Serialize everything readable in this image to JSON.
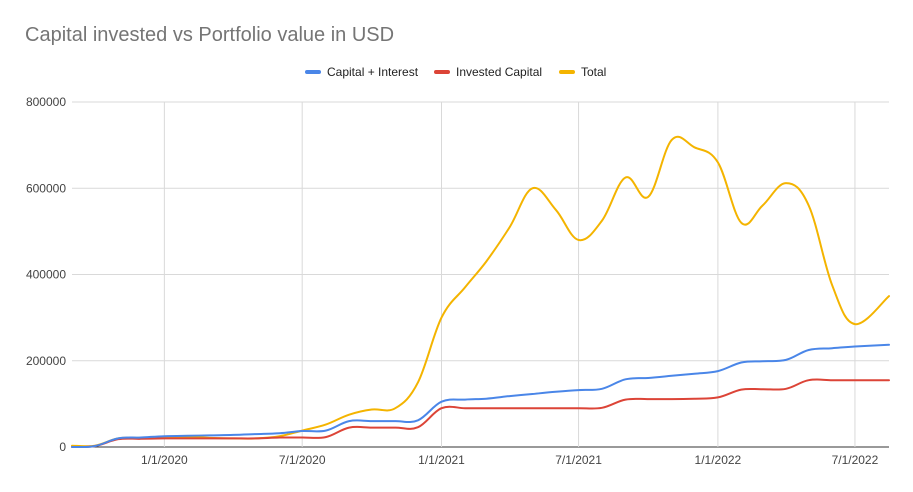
{
  "chart_data": {
    "type": "line",
    "title": "Capital invested vs Portfolio value in USD",
    "xlabel": "",
    "ylabel": "",
    "ylim": [
      0,
      800000
    ],
    "yticks": [
      "0",
      "200000",
      "400000",
      "600000",
      "800000"
    ],
    "xtick_labels": [
      "1/1/2020",
      "7/1/2020",
      "1/1/2021",
      "7/1/2021",
      "1/1/2022",
      "7/1/2022"
    ],
    "xtick_dates": [
      "2020-01-01",
      "2020-07-01",
      "2021-01-01",
      "2021-07-01",
      "2022-01-01",
      "2022-07-01"
    ],
    "xlim": [
      "2019-09-01",
      "2022-08-15"
    ],
    "grid": true,
    "legend_position": "top",
    "series": [
      {
        "name": "Capital + Interest",
        "color": "#4a86e8",
        "points": [
          [
            "2019-09-01",
            0
          ],
          [
            "2019-10-01",
            2000
          ],
          [
            "2019-11-01",
            20000
          ],
          [
            "2019-12-01",
            22000
          ],
          [
            "2020-01-01",
            25000
          ],
          [
            "2020-02-01",
            26000
          ],
          [
            "2020-03-01",
            27000
          ],
          [
            "2020-04-01",
            28000
          ],
          [
            "2020-05-01",
            30000
          ],
          [
            "2020-06-01",
            32000
          ],
          [
            "2020-07-01",
            37000
          ],
          [
            "2020-08-01",
            38000
          ],
          [
            "2020-09-01",
            60000
          ],
          [
            "2020-10-01",
            60000
          ],
          [
            "2020-11-01",
            60000
          ],
          [
            "2020-12-01",
            62000
          ],
          [
            "2021-01-01",
            105000
          ],
          [
            "2021-02-01",
            110000
          ],
          [
            "2021-03-01",
            112000
          ],
          [
            "2021-04-01",
            118000
          ],
          [
            "2021-05-01",
            123000
          ],
          [
            "2021-06-01",
            128000
          ],
          [
            "2021-07-01",
            132000
          ],
          [
            "2021-08-01",
            135000
          ],
          [
            "2021-09-01",
            157000
          ],
          [
            "2021-10-01",
            160000
          ],
          [
            "2021-11-01",
            165000
          ],
          [
            "2021-12-01",
            170000
          ],
          [
            "2022-01-01",
            176000
          ],
          [
            "2022-02-01",
            196000
          ],
          [
            "2022-03-01",
            199000
          ],
          [
            "2022-04-01",
            202000
          ],
          [
            "2022-05-01",
            225000
          ],
          [
            "2022-06-01",
            229000
          ],
          [
            "2022-07-01",
            233000
          ],
          [
            "2022-08-15",
            237000
          ]
        ]
      },
      {
        "name": "Invested Capital",
        "color": "#dc4437",
        "points": [
          [
            "2019-09-01",
            0
          ],
          [
            "2019-10-01",
            2000
          ],
          [
            "2019-11-01",
            18000
          ],
          [
            "2019-12-01",
            19000
          ],
          [
            "2020-01-01",
            20000
          ],
          [
            "2020-02-01",
            20000
          ],
          [
            "2020-03-01",
            20000
          ],
          [
            "2020-04-01",
            20000
          ],
          [
            "2020-05-01",
            20000
          ],
          [
            "2020-06-01",
            22000
          ],
          [
            "2020-07-01",
            22000
          ],
          [
            "2020-08-01",
            23000
          ],
          [
            "2020-09-01",
            45000
          ],
          [
            "2020-10-01",
            45000
          ],
          [
            "2020-11-01",
            45000
          ],
          [
            "2020-12-01",
            46000
          ],
          [
            "2021-01-01",
            90000
          ],
          [
            "2021-02-01",
            90000
          ],
          [
            "2021-03-01",
            90000
          ],
          [
            "2021-04-01",
            90000
          ],
          [
            "2021-05-01",
            90000
          ],
          [
            "2021-06-01",
            90000
          ],
          [
            "2021-07-01",
            90000
          ],
          [
            "2021-08-01",
            91000
          ],
          [
            "2021-09-01",
            110000
          ],
          [
            "2021-10-01",
            111000
          ],
          [
            "2021-11-01",
            111000
          ],
          [
            "2021-12-01",
            112000
          ],
          [
            "2022-01-01",
            115000
          ],
          [
            "2022-02-01",
            133000
          ],
          [
            "2022-03-01",
            134000
          ],
          [
            "2022-04-01",
            135000
          ],
          [
            "2022-05-01",
            155000
          ],
          [
            "2022-06-01",
            155000
          ],
          [
            "2022-07-01",
            155000
          ],
          [
            "2022-08-15",
            155000
          ]
        ]
      },
      {
        "name": "Total",
        "color": "#f4b400",
        "points": [
          [
            "2019-09-01",
            3000
          ],
          [
            "2019-10-01",
            3000
          ],
          [
            "2019-11-01",
            20000
          ],
          [
            "2019-12-01",
            21000
          ],
          [
            "2020-01-01",
            22000
          ],
          [
            "2020-02-01",
            24000
          ],
          [
            "2020-03-01",
            21000
          ],
          [
            "2020-04-01",
            20000
          ],
          [
            "2020-05-01",
            20000
          ],
          [
            "2020-06-01",
            25000
          ],
          [
            "2020-07-01",
            38000
          ],
          [
            "2020-08-01",
            52000
          ],
          [
            "2020-09-01",
            75000
          ],
          [
            "2020-10-01",
            87000
          ],
          [
            "2020-11-01",
            90000
          ],
          [
            "2020-12-01",
            150000
          ],
          [
            "2021-01-01",
            300000
          ],
          [
            "2021-02-01",
            370000
          ],
          [
            "2021-03-01",
            430000
          ],
          [
            "2021-04-01",
            510000
          ],
          [
            "2021-05-01",
            600000
          ],
          [
            "2021-06-01",
            550000
          ],
          [
            "2021-07-01",
            480000
          ],
          [
            "2021-08-01",
            525000
          ],
          [
            "2021-09-01",
            625000
          ],
          [
            "2021-10-01",
            580000
          ],
          [
            "2021-11-01",
            712000
          ],
          [
            "2021-12-01",
            695000
          ],
          [
            "2022-01-01",
            660000
          ],
          [
            "2022-02-01",
            520000
          ],
          [
            "2022-03-01",
            560000
          ],
          [
            "2022-04-01",
            612000
          ],
          [
            "2022-05-01",
            560000
          ],
          [
            "2022-06-01",
            375000
          ],
          [
            "2022-07-01",
            285000
          ],
          [
            "2022-08-15",
            350000
          ]
        ]
      }
    ]
  }
}
